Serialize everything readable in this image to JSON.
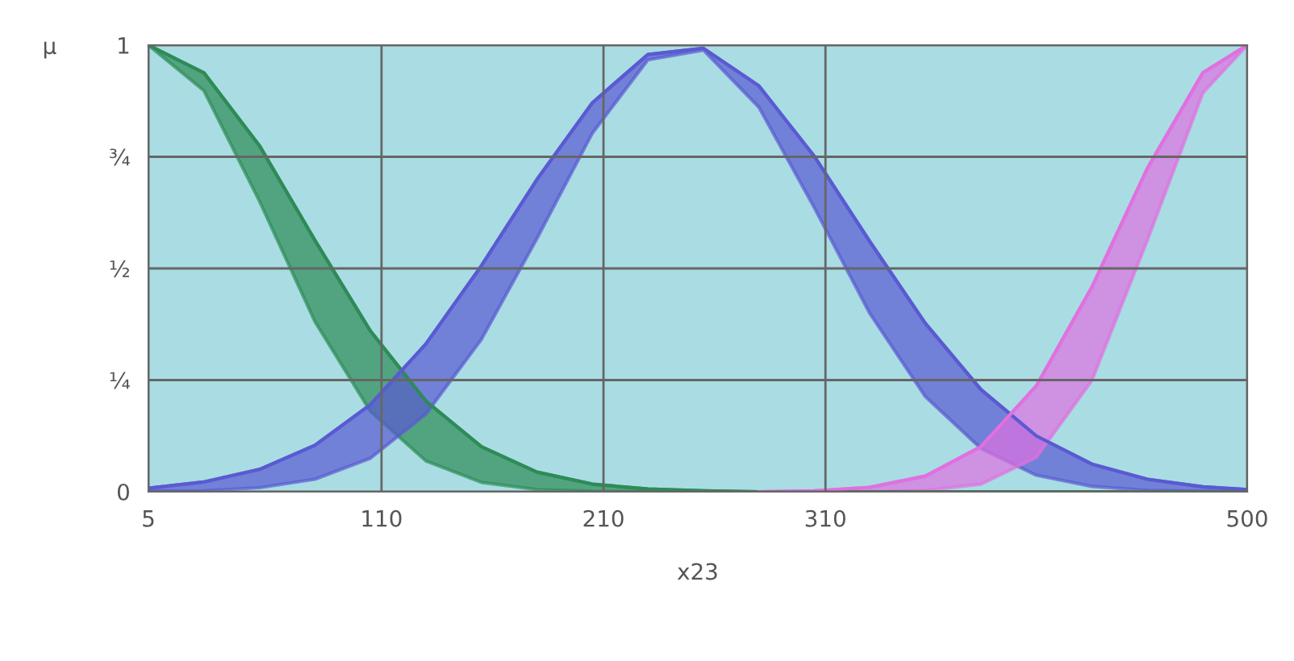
{
  "chart_data": {
    "type": "line",
    "xlabel": "x23",
    "ylabel": "μ",
    "x": [
      5,
      30,
      55,
      80,
      105,
      130,
      155,
      180,
      205,
      230,
      255,
      280,
      305,
      330,
      355,
      380,
      405,
      430,
      455,
      480,
      500
    ],
    "series": [
      {
        "color": "#2e8b57",
        "values": [
          1,
          0.938,
          0.775,
          0.563,
          0.36,
          0.203,
          0.101,
          0.044,
          0.017,
          0.006,
          0.002,
          0,
          0,
          0,
          0,
          0,
          0,
          0,
          0,
          0,
          0
        ],
        "lower": [
          1,
          0.898,
          0.651,
          0.381,
          0.18,
          0.069,
          0.021,
          0.005,
          0.001,
          0,
          0,
          0,
          0,
          0,
          0,
          0,
          0,
          0,
          0,
          0,
          0
        ],
        "upper": [
          1,
          0.938,
          0.775,
          0.563,
          0.36,
          0.203,
          0.101,
          0.044,
          0.017,
          0.006,
          0.002,
          0,
          0,
          0,
          0,
          0,
          0,
          0,
          0,
          0,
          0
        ]
      },
      {
        "color": "#5a5ad2",
        "values": [
          0.008,
          0.022,
          0.05,
          0.104,
          0.195,
          0.331,
          0.506,
          0.699,
          0.871,
          0.979,
          0.993,
          0.909,
          0.751,
          0.56,
          0.377,
          0.229,
          0.125,
          0.062,
          0.028,
          0.011,
          0.005
        ],
        "lower": [
          0.001,
          0.002,
          0.009,
          0.028,
          0.075,
          0.174,
          0.341,
          0.567,
          0.803,
          0.967,
          0.989,
          0.861,
          0.636,
          0.399,
          0.213,
          0.097,
          0.037,
          0.012,
          0.003,
          0.001,
          0
        ],
        "upper": [
          0.008,
          0.022,
          0.05,
          0.104,
          0.195,
          0.331,
          0.506,
          0.699,
          0.871,
          0.979,
          0.993,
          0.909,
          0.751,
          0.56,
          0.377,
          0.229,
          0.125,
          0.062,
          0.028,
          0.011,
          0.005
        ]
      },
      {
        "color": "#e070e0",
        "values": [
          null,
          null,
          null,
          null,
          null,
          null,
          null,
          null,
          null,
          null,
          null,
          0,
          0.002,
          0.01,
          0.035,
          0.101,
          0.237,
          0.458,
          0.724,
          0.938,
          1
        ],
        "lower": [
          null,
          null,
          null,
          null,
          null,
          null,
          null,
          null,
          null,
          null,
          null,
          0,
          0,
          0,
          0.003,
          0.017,
          0.077,
          0.249,
          0.563,
          0.893,
          1
        ],
        "upper": [
          null,
          null,
          null,
          null,
          null,
          null,
          null,
          null,
          null,
          null,
          null,
          0,
          0.002,
          0.01,
          0.035,
          0.101,
          0.237,
          0.458,
          0.724,
          0.938,
          1
        ]
      }
    ],
    "xlim": [
      5,
      500
    ],
    "xticks": [
      5,
      110,
      210,
      310,
      500
    ],
    "ylim": [
      0,
      1
    ],
    "yticks": [
      0,
      {
        "value": 0.25,
        "label": "¼"
      },
      {
        "value": 0.5,
        "label": "½"
      },
      {
        "value": 0.75,
        "label": "¾"
      },
      1
    ],
    "grid": true,
    "marker": "none",
    "line_style": "solid"
  }
}
